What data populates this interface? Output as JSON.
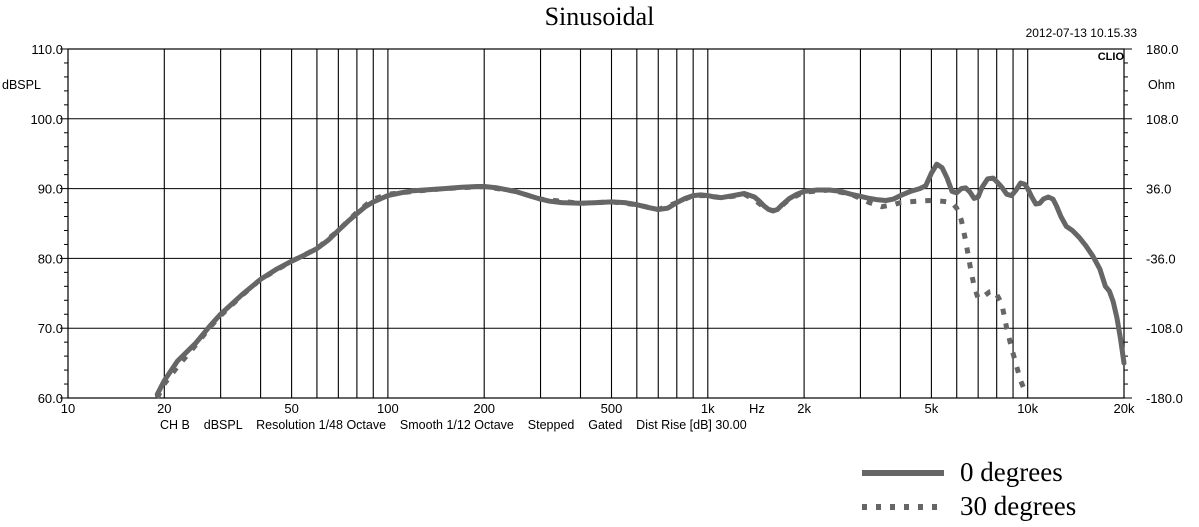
{
  "chart_data": {
    "type": "line",
    "title": "Sinusoidal",
    "timestamp": "2012-07-13 10.15.33",
    "brand": "CLIO",
    "xlabel": "Hz",
    "ylabel": "dBSPL",
    "y2label": "Ohm",
    "x_scale": "log",
    "xlim": [
      10,
      20000
    ],
    "ylim": [
      60,
      110
    ],
    "y2lim": [
      -180,
      180
    ],
    "grid": true,
    "x_tick_labels": [
      {
        "x": 10,
        "label": "10"
      },
      {
        "x": 20,
        "label": "20"
      },
      {
        "x": 50,
        "label": "50"
      },
      {
        "x": 100,
        "label": "100"
      },
      {
        "x": 200,
        "label": "200"
      },
      {
        "x": 500,
        "label": "500"
      },
      {
        "x": 1000,
        "label": "1k"
      },
      {
        "x": 2000,
        "label": "2k"
      },
      {
        "x": 5000,
        "label": "5k"
      },
      {
        "x": 10000,
        "label": "10k"
      },
      {
        "x": 20000,
        "label": "20k"
      }
    ],
    "x_gridlines": [
      20,
      30,
      40,
      50,
      60,
      70,
      80,
      90,
      100,
      200,
      300,
      400,
      500,
      600,
      700,
      800,
      900,
      1000,
      2000,
      3000,
      4000,
      5000,
      6000,
      7000,
      8000,
      9000,
      10000
    ],
    "y_ticks": [
      {
        "y": 110,
        "label": "110.0"
      },
      {
        "y": 100,
        "label": "100.0"
      },
      {
        "y": 90,
        "label": "90.0"
      },
      {
        "y": 80,
        "label": "80.0"
      },
      {
        "y": 70,
        "label": "70.0"
      },
      {
        "y": 60,
        "label": "60.0"
      }
    ],
    "y2_ticks": [
      {
        "y": 110,
        "label": "180.0"
      },
      {
        "y": 100,
        "label": "108.0"
      },
      {
        "y": 90,
        "label": "36.0"
      },
      {
        "y": 80,
        "label": "-36.0"
      },
      {
        "y": 70,
        "label": "-108.0"
      },
      {
        "y": 60,
        "label": "-180.0"
      }
    ],
    "footer": "CH B    dBSPL    Resolution 1/48 Octave    Smooth 1/12 Octave    Stepped    Gated    Dist Rise [dB] 30.00",
    "series": [
      {
        "name": "0 degrees",
        "style": "solid",
        "color": "#666666",
        "points": [
          [
            19,
            60.5
          ],
          [
            20,
            62.5
          ],
          [
            22,
            65.3
          ],
          [
            25,
            67.8
          ],
          [
            28,
            70.5
          ],
          [
            30,
            72.0
          ],
          [
            35,
            74.8
          ],
          [
            40,
            77.0
          ],
          [
            45,
            78.5
          ],
          [
            50,
            79.6
          ],
          [
            55,
            80.5
          ],
          [
            60,
            81.4
          ],
          [
            65,
            82.6
          ],
          [
            70,
            84.0
          ],
          [
            75,
            85.3
          ],
          [
            80,
            86.4
          ],
          [
            85,
            87.4
          ],
          [
            90,
            88.1
          ],
          [
            100,
            89.0
          ],
          [
            110,
            89.4
          ],
          [
            120,
            89.7
          ],
          [
            130,
            89.8
          ],
          [
            150,
            90.0
          ],
          [
            170,
            90.2
          ],
          [
            190,
            90.3
          ],
          [
            200,
            90.3
          ],
          [
            220,
            90.1
          ],
          [
            250,
            89.6
          ],
          [
            280,
            88.9
          ],
          [
            300,
            88.5
          ],
          [
            320,
            88.2
          ],
          [
            350,
            88.0
          ],
          [
            400,
            87.9
          ],
          [
            450,
            88.0
          ],
          [
            500,
            88.1
          ],
          [
            550,
            88.0
          ],
          [
            600,
            87.7
          ],
          [
            650,
            87.3
          ],
          [
            700,
            87.0
          ],
          [
            750,
            87.2
          ],
          [
            800,
            88.0
          ],
          [
            850,
            88.6
          ],
          [
            900,
            89.0
          ],
          [
            950,
            89.1
          ],
          [
            1000,
            89.0
          ],
          [
            1050,
            88.8
          ],
          [
            1100,
            88.7
          ],
          [
            1200,
            89.0
          ],
          [
            1300,
            89.3
          ],
          [
            1400,
            88.8
          ],
          [
            1450,
            88.2
          ],
          [
            1500,
            87.5
          ],
          [
            1550,
            87.0
          ],
          [
            1600,
            86.8
          ],
          [
            1650,
            87.0
          ],
          [
            1700,
            87.6
          ],
          [
            1800,
            88.6
          ],
          [
            1900,
            89.2
          ],
          [
            2000,
            89.6
          ],
          [
            2200,
            89.8
          ],
          [
            2400,
            89.8
          ],
          [
            2600,
            89.6
          ],
          [
            2800,
            89.2
          ],
          [
            3000,
            88.9
          ],
          [
            3200,
            88.6
          ],
          [
            3400,
            88.4
          ],
          [
            3600,
            88.3
          ],
          [
            3800,
            88.5
          ],
          [
            4000,
            89.0
          ],
          [
            4300,
            89.6
          ],
          [
            4600,
            90.0
          ],
          [
            4800,
            90.4
          ],
          [
            5000,
            92.2
          ],
          [
            5200,
            93.5
          ],
          [
            5400,
            93.0
          ],
          [
            5600,
            91.5
          ],
          [
            5800,
            89.6
          ],
          [
            6000,
            89.4
          ],
          [
            6200,
            90.0
          ],
          [
            6400,
            90.1
          ],
          [
            6600,
            89.5
          ],
          [
            6800,
            88.6
          ],
          [
            7000,
            88.8
          ],
          [
            7200,
            90.2
          ],
          [
            7500,
            91.4
          ],
          [
            7800,
            91.5
          ],
          [
            8000,
            91.0
          ],
          [
            8300,
            90.2
          ],
          [
            8600,
            89.2
          ],
          [
            8900,
            89.0
          ],
          [
            9200,
            89.8
          ],
          [
            9500,
            90.8
          ],
          [
            9800,
            90.6
          ],
          [
            10000,
            90.0
          ],
          [
            10300,
            88.8
          ],
          [
            10600,
            87.8
          ],
          [
            10900,
            87.9
          ],
          [
            11200,
            88.5
          ],
          [
            11600,
            88.8
          ],
          [
            12000,
            88.5
          ],
          [
            12300,
            87.5
          ],
          [
            12700,
            86.0
          ],
          [
            13200,
            84.6
          ],
          [
            13800,
            84.0
          ],
          [
            14500,
            83.0
          ],
          [
            15200,
            81.8
          ],
          [
            16000,
            80.3
          ],
          [
            16800,
            78.5
          ],
          [
            17500,
            76.0
          ],
          [
            18000,
            75.3
          ],
          [
            18500,
            73.8
          ],
          [
            19000,
            71.5
          ],
          [
            19500,
            68.5
          ],
          [
            20000,
            65.0
          ]
        ]
      },
      {
        "name": "30 degrees",
        "style": "dotted",
        "color": "#666666",
        "points": [
          [
            19,
            60.0
          ],
          [
            20,
            62.0
          ],
          [
            22,
            64.5
          ],
          [
            25,
            67.5
          ],
          [
            28,
            70.3
          ],
          [
            30,
            71.8
          ],
          [
            35,
            74.7
          ],
          [
            40,
            77.0
          ],
          [
            50,
            79.6
          ],
          [
            60,
            81.4
          ],
          [
            70,
            84.0
          ],
          [
            80,
            86.6
          ],
          [
            90,
            88.5
          ],
          [
            100,
            89.2
          ],
          [
            120,
            89.6
          ],
          [
            150,
            90.0
          ],
          [
            200,
            90.3
          ],
          [
            250,
            89.6
          ],
          [
            300,
            88.5
          ],
          [
            400,
            87.9
          ],
          [
            500,
            88.1
          ],
          [
            600,
            87.7
          ],
          [
            700,
            87.0
          ],
          [
            800,
            88.0
          ],
          [
            900,
            89.0
          ],
          [
            1000,
            89.0
          ],
          [
            1100,
            88.7
          ],
          [
            1200,
            88.9
          ],
          [
            1300,
            89.2
          ],
          [
            1400,
            88.4
          ],
          [
            1500,
            87.3
          ],
          [
            1600,
            86.8
          ],
          [
            1700,
            87.5
          ],
          [
            1800,
            88.5
          ],
          [
            2000,
            89.5
          ],
          [
            2400,
            89.8
          ],
          [
            2800,
            89.2
          ],
          [
            3000,
            88.6
          ],
          [
            3200,
            88.0
          ],
          [
            3500,
            87.4
          ],
          [
            3800,
            87.7
          ],
          [
            4000,
            88.0
          ],
          [
            4500,
            88.2
          ],
          [
            5000,
            88.3
          ],
          [
            5400,
            88.2
          ],
          [
            5800,
            88.0
          ],
          [
            6000,
            87.2
          ],
          [
            6200,
            85.5
          ],
          [
            6400,
            82.5
          ],
          [
            6600,
            79.0
          ],
          [
            6800,
            76.0
          ],
          [
            7000,
            74.3
          ],
          [
            7300,
            74.6
          ],
          [
            7600,
            75.2
          ],
          [
            7900,
            75.3
          ],
          [
            8300,
            73.5
          ],
          [
            8600,
            70.0
          ],
          [
            8900,
            67.2
          ],
          [
            9200,
            64.8
          ],
          [
            9500,
            62.5
          ],
          [
            9800,
            61.0
          ]
        ]
      }
    ],
    "legend": {
      "placement": "bottom-right",
      "entries": [
        {
          "label": "0 degrees",
          "style": "solid"
        },
        {
          "label": "30 degrees",
          "style": "dotted"
        }
      ]
    }
  }
}
